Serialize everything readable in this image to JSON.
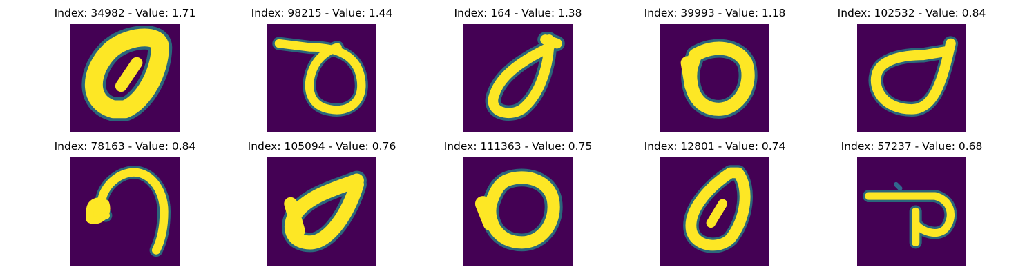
{
  "colors": {
    "background": "#440154",
    "mid_low": "#31688e",
    "mid": "#21918c",
    "mid_high": "#5ec962",
    "foreground": "#fde725"
  },
  "panels": [
    {
      "title": "Index: 34982 - Value: 1.71",
      "glyph": "digit-zero-oval"
    },
    {
      "title": "Index: 98215 - Value: 1.44",
      "glyph": "digit-zero-loop-with-top-stroke"
    },
    {
      "title": "Index: 164 - Value: 1.38",
      "glyph": "digit-zero-teardrop"
    },
    {
      "title": "Index: 39993 - Value: 1.18",
      "glyph": "digit-zero-round"
    },
    {
      "title": "Index: 102532 - Value: 0.84",
      "glyph": "digit-zero-teardrop-wide"
    },
    {
      "title": "Index: 78163 - Value: 0.84",
      "glyph": "digit-hook-curve"
    },
    {
      "title": "Index: 105094 - Value: 0.76",
      "glyph": "digit-zero-slanted"
    },
    {
      "title": "Index: 111363 - Value: 0.75",
      "glyph": "digit-zero-round-thick"
    },
    {
      "title": "Index: 12801 - Value: 0.74",
      "glyph": "digit-zero-narrow"
    },
    {
      "title": "Index: 57237 - Value: 0.68",
      "glyph": "digit-loop-with-bar"
    }
  ]
}
